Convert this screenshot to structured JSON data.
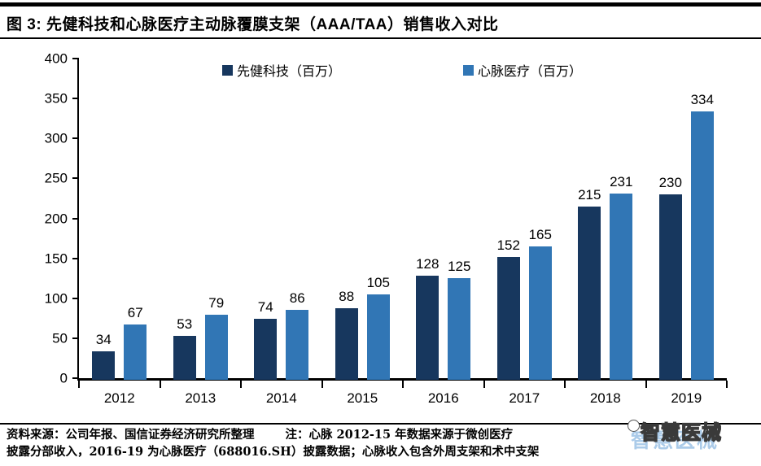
{
  "figure": {
    "title": "图 3: 先健科技和心脉医疗主动脉覆膜支架（AAA/TAA）销售收入对比"
  },
  "chart_data": {
    "type": "bar",
    "categories": [
      "2012",
      "2013",
      "2014",
      "2015",
      "2016",
      "2017",
      "2018",
      "2019"
    ],
    "series": [
      {
        "name": "先健科技（百万）",
        "color": "#17375e",
        "values": [
          34,
          53,
          74,
          88,
          128,
          152,
          215,
          230
        ]
      },
      {
        "name": "心脉医疗（百万）",
        "color": "#3176b5",
        "values": [
          67,
          79,
          86,
          105,
          125,
          165,
          231,
          334
        ]
      }
    ],
    "title": "",
    "xlabel": "",
    "ylabel": "",
    "ylim": [
      0,
      400
    ],
    "ytick_step": 50,
    "grid": false,
    "legend_position": "top",
    "value_labels": true
  },
  "footer": {
    "source": "资料来源：公司年报、国信证券经济研究所整理",
    "note_line1": "注：心脉 2012-15 年数据来源于微创医疗",
    "note_line2": "披露分部收入，2016-19 为心脉医疗（688016.SH）披露数据；心脉收入包含外周支架和术中支架"
  },
  "watermark": {
    "text": "智慧医械"
  },
  "colors": {
    "series1": "#17375e",
    "series2": "#3176b5",
    "axis": "#000000",
    "watermark_blue": "#9dc3e6"
  }
}
